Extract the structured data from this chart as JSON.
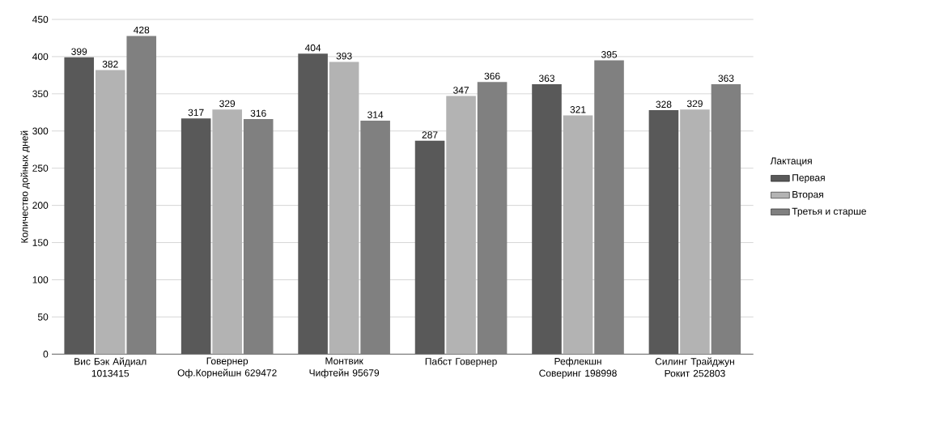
{
  "chart_data": {
    "type": "bar",
    "ylabel": "Количество дойных дней",
    "legend_title": "Лактация",
    "categories": [
      "Вис Бэк Айдиал 1013415",
      "Говернер Оф.Корнейшн 629472",
      "Монтвик Чифтейн 95679",
      "Пабст Говернер",
      "Рефлекшн Соверинг 198998",
      "Силинг Трайджун Рокит 252803"
    ],
    "series": [
      {
        "name": "Первая",
        "color": "#595959",
        "values": [
          399,
          317,
          404,
          287,
          363,
          328
        ]
      },
      {
        "name": "Вторая",
        "color": "#b3b3b3",
        "values": [
          382,
          329,
          393,
          347,
          321,
          329
        ]
      },
      {
        "name": "Третья и старше",
        "color": "#808080",
        "values": [
          428,
          316,
          314,
          366,
          395,
          363
        ]
      }
    ],
    "ylim": [
      0,
      450
    ],
    "yticks": [
      0,
      50,
      100,
      150,
      200,
      250,
      300,
      350,
      400,
      450
    ],
    "grid": "y",
    "legend": "right",
    "data_labels": true
  }
}
